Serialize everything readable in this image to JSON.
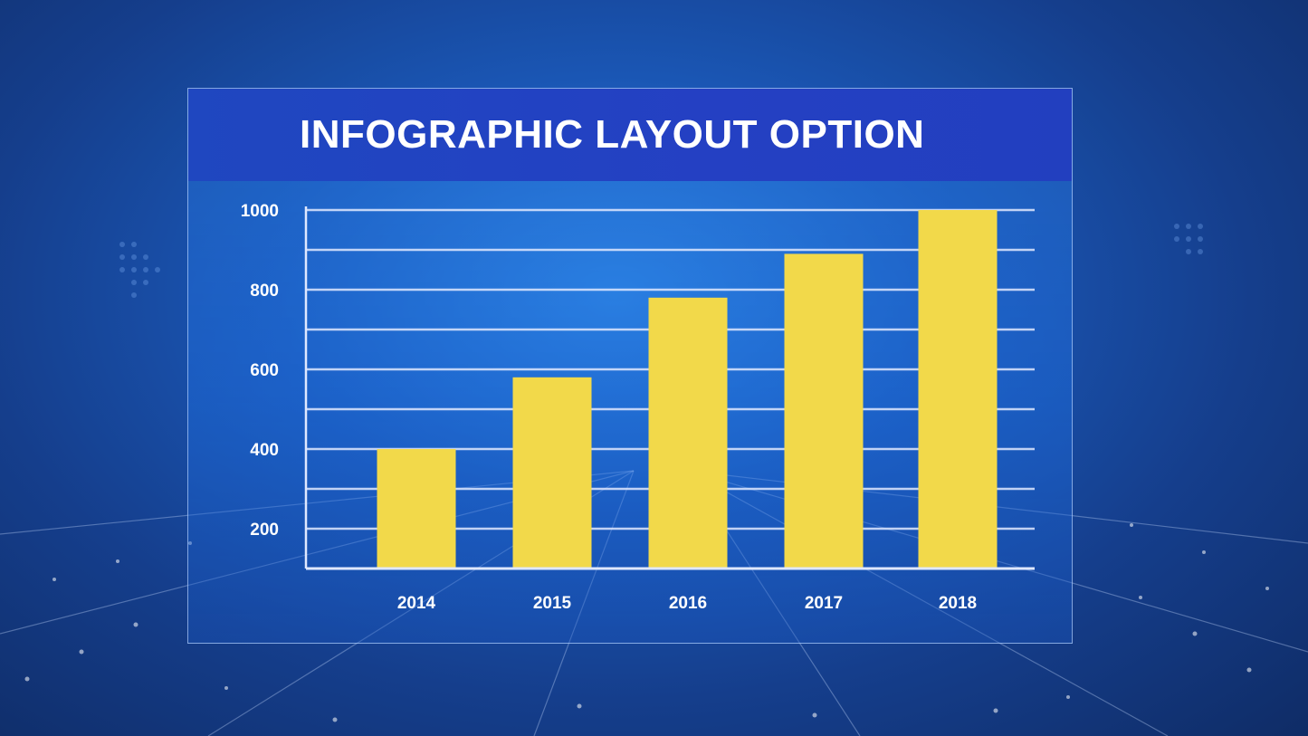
{
  "chart_data": {
    "type": "bar",
    "title": "INFOGRAPHIC LAYOUT OPTION",
    "categories": [
      "2014",
      "2015",
      "2016",
      "2017",
      "2018"
    ],
    "values": [
      400,
      580,
      780,
      890,
      1000
    ],
    "xlabel": "",
    "ylabel": "",
    "ylim": [
      100,
      1000
    ],
    "yticks": [
      200,
      400,
      600,
      800,
      1000
    ],
    "grid": true,
    "legend": "none",
    "bar_color": "#f2d94a"
  },
  "colors": {
    "title_bar": "#2343c2",
    "grid": "#dfe8ff",
    "text": "#ffffff"
  }
}
